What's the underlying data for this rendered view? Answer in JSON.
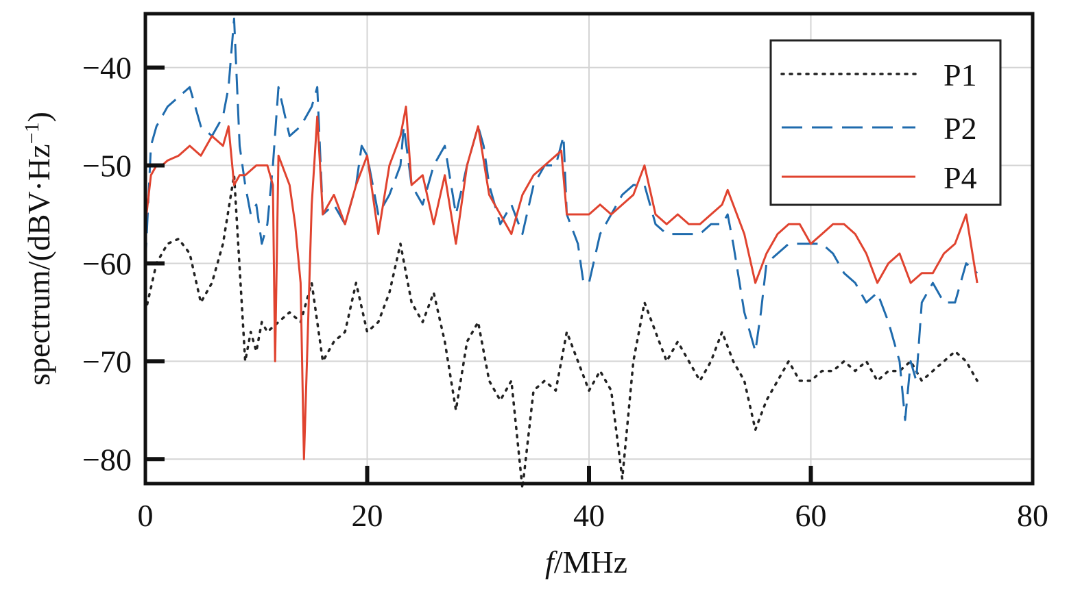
{
  "chart_data": {
    "type": "line",
    "xlabel_italic": "f",
    "xlabel_rest": "/MHz",
    "ylabel": "spectrum/(dBV·Hz",
    "ylabel_sup": "−1",
    "ylabel_close": ")",
    "xlim": [
      0,
      80
    ],
    "ylim": [
      -82.5,
      -34.5
    ],
    "xticks": [
      0,
      20,
      40,
      60,
      80
    ],
    "xtick_labels": [
      "0",
      "20",
      "40",
      "60",
      "80"
    ],
    "yticks": [
      -40,
      -50,
      -60,
      -70,
      -80
    ],
    "ytick_labels": [
      "−40",
      "−50",
      "−60",
      "−70",
      "−80"
    ],
    "grid": true,
    "legend_position": "top-right",
    "series": [
      {
        "name": "P1",
        "color": "#222222",
        "style": "dotted",
        "x": [
          0,
          1,
          2,
          3,
          4,
          5,
          6,
          7,
          8,
          9,
          9.5,
          10,
          10.5,
          11,
          12,
          13,
          14,
          15,
          16,
          17,
          18,
          19,
          20,
          21,
          22,
          23,
          24,
          25,
          26,
          27,
          28,
          29,
          30,
          31,
          32,
          33,
          34,
          35,
          36,
          37,
          38,
          39,
          40,
          41,
          42,
          43,
          44,
          45,
          46,
          47,
          48,
          49,
          50,
          51,
          52,
          53,
          54,
          55,
          56,
          57,
          58,
          59,
          60,
          61,
          62,
          63,
          64,
          65,
          66,
          67,
          68,
          69,
          70,
          71,
          72,
          73,
          74,
          75
        ],
        "values": [
          -65,
          -60,
          -58,
          -57.5,
          -59,
          -64,
          -62,
          -58,
          -51,
          -70,
          -67,
          -69,
          -66,
          -67,
          -66,
          -65,
          -66,
          -62,
          -70,
          -68,
          -67,
          -62,
          -67,
          -66,
          -63,
          -58,
          -64,
          -66,
          -63,
          -68,
          -75,
          -68,
          -66,
          -72,
          -74,
          -72,
          -83,
          -73,
          -72,
          -73,
          -67,
          -70,
          -73,
          -71,
          -73,
          -82,
          -70,
          -64,
          -67,
          -70,
          -68,
          -70,
          -72,
          -70,
          -67,
          -70,
          -72,
          -77,
          -74,
          -72,
          -70,
          -72,
          -72,
          -71,
          -71,
          -70,
          -71,
          -70,
          -72,
          -71,
          -71,
          -70,
          -72,
          -71,
          -70,
          -69,
          -70,
          -72
        ]
      },
      {
        "name": "P2",
        "color": "#1f6bad",
        "style": "dashed",
        "x": [
          0,
          0.5,
          1,
          1.5,
          2,
          3,
          4,
          5,
          6,
          7,
          7.5,
          8,
          8.5,
          9,
          9.5,
          10,
          10.5,
          11,
          11.5,
          12,
          13,
          14,
          15,
          15.5,
          16,
          17,
          18,
          19,
          19.5,
          20,
          21,
          22,
          23,
          23.3,
          24,
          25,
          26,
          27,
          28,
          29,
          30,
          30.5,
          31,
          32,
          33,
          34,
          35,
          36,
          37,
          37.7,
          38,
          39,
          39.5,
          40,
          41,
          42,
          43,
          44,
          45,
          46,
          47,
          48,
          49,
          50,
          51,
          52,
          52.5,
          53,
          54,
          55,
          55.5,
          56,
          57,
          58,
          59,
          60,
          61,
          62,
          63,
          64,
          65,
          66,
          67,
          68,
          68.5,
          69,
          69.5,
          70,
          71,
          72,
          73,
          74,
          75
        ],
        "values": [
          -60,
          -48,
          -46,
          -45,
          -44,
          -43,
          -42,
          -46,
          -47,
          -45,
          -42,
          -35,
          -48,
          -52,
          -55,
          -54,
          -58,
          -56,
          -50,
          -42,
          -47,
          -46,
          -44,
          -42,
          -55,
          -54,
          -56,
          -52,
          -48,
          -49,
          -55,
          -53,
          -50,
          -46,
          -52,
          -54,
          -50,
          -48,
          -55,
          -50,
          -46,
          -48,
          -52,
          -56,
          -54,
          -57,
          -52,
          -50,
          -50,
          -47,
          -55,
          -58,
          -62,
          -62,
          -57,
          -55,
          -53,
          -52,
          -52,
          -56,
          -57,
          -57,
          -57,
          -57,
          -56,
          -56,
          -55,
          -58,
          -65,
          -69,
          -65,
          -60,
          -59,
          -58,
          -58,
          -58,
          -58,
          -59,
          -61,
          -62,
          -64,
          -63,
          -66,
          -70,
          -76,
          -70,
          -72,
          -64,
          -62,
          -64,
          -64,
          -60,
          -61
        ]
      },
      {
        "name": "P4",
        "color": "#e0432f",
        "style": "solid",
        "x": [
          0,
          0.5,
          1,
          1.5,
          2,
          3,
          4,
          5,
          6,
          7,
          7.5,
          8,
          8.5,
          9,
          10,
          11,
          11.5,
          11.7,
          12,
          13,
          13.5,
          14,
          14.3,
          15,
          15.5,
          16,
          17,
          18,
          19,
          20,
          21,
          22,
          23,
          23.5,
          24,
          25,
          26,
          27,
          28,
          29,
          30,
          31,
          32,
          33,
          34,
          35,
          36,
          37,
          37.5,
          38,
          39,
          40,
          41,
          42,
          43,
          44,
          45,
          46,
          47,
          48,
          49,
          50,
          51,
          52,
          52.5,
          53,
          54,
          55,
          56,
          57,
          58,
          59,
          60,
          61,
          62,
          63,
          64,
          65,
          66,
          67,
          68,
          69,
          70,
          71,
          72,
          73,
          74,
          75
        ],
        "values": [
          -56,
          -51,
          -50,
          -50,
          -49.5,
          -49,
          -48,
          -49,
          -47,
          -48,
          -46,
          -52,
          -51,
          -51,
          -50,
          -50,
          -52,
          -70,
          -49,
          -52,
          -56,
          -62,
          -80,
          -54,
          -45,
          -55,
          -53,
          -56,
          -52,
          -49,
          -57,
          -50,
          -47,
          -44,
          -52,
          -51,
          -56,
          -51,
          -58,
          -50,
          -46,
          -53,
          -55,
          -57,
          -53,
          -51,
          -50,
          -49,
          -48.5,
          -55,
          -55,
          -55,
          -54,
          -55,
          -54,
          -53,
          -50,
          -55,
          -56,
          -55,
          -56,
          -56,
          -55,
          -54,
          -52.5,
          -54,
          -57,
          -62,
          -59,
          -57,
          -56,
          -56,
          -58,
          -57,
          -56,
          -56,
          -57,
          -59,
          -62,
          -60,
          -59,
          -62,
          -61,
          -61,
          -59,
          -58,
          -55,
          -62
        ]
      }
    ]
  }
}
